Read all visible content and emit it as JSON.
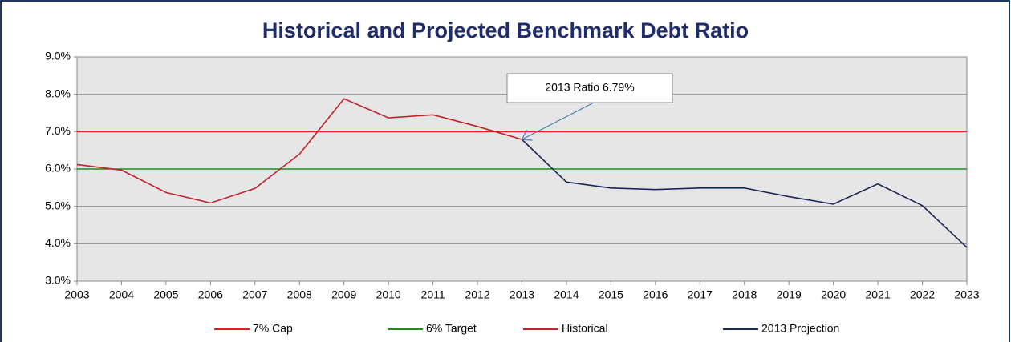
{
  "chart_data": {
    "type": "line",
    "title": "Historical and Projected Benchmark Debt Ratio",
    "x": [
      2003,
      2004,
      2005,
      2006,
      2007,
      2008,
      2009,
      2010,
      2011,
      2012,
      2013,
      2014,
      2015,
      2016,
      2017,
      2018,
      2019,
      2020,
      2021,
      2022,
      2023
    ],
    "xlim": [
      2003,
      2023
    ],
    "xticks": [
      2003,
      2004,
      2005,
      2006,
      2007,
      2008,
      2009,
      2010,
      2011,
      2012,
      2013,
      2014,
      2015,
      2016,
      2017,
      2018,
      2019,
      2020,
      2021,
      2022,
      2023
    ],
    "ylim": [
      3,
      9
    ],
    "yticks": [
      {
        "value": 3,
        "label": "3.0%"
      },
      {
        "value": 4,
        "label": "4.0%"
      },
      {
        "value": 5,
        "label": "5.0%"
      },
      {
        "value": 6,
        "label": "6.0%"
      },
      {
        "value": 7,
        "label": "7.0%"
      },
      {
        "value": 8,
        "label": "8.0%"
      },
      {
        "value": 9,
        "label": "9.0%"
      }
    ],
    "grid": true,
    "legend": "bottom",
    "series": [
      {
        "name": "7% Cap",
        "color": "#e0201c",
        "values": [
          7,
          7,
          7,
          7,
          7,
          7,
          7,
          7,
          7,
          7,
          7,
          7,
          7,
          7,
          7,
          7,
          7,
          7,
          7,
          7,
          7
        ]
      },
      {
        "name": "6% Target",
        "color": "#1e8c1e",
        "values": [
          6,
          6,
          6,
          6,
          6,
          6,
          6,
          6,
          6,
          6,
          6,
          6,
          6,
          6,
          6,
          6,
          6,
          6,
          6,
          6,
          6
        ]
      },
      {
        "name": "Historical",
        "color": "#c0242c",
        "values": [
          6.12,
          5.97,
          5.37,
          5.09,
          5.48,
          6.4,
          7.88,
          7.37,
          7.45,
          7.14,
          6.79,
          null,
          null,
          null,
          null,
          null,
          null,
          null,
          null,
          null,
          null
        ]
      },
      {
        "name": "2013 Projection",
        "color": "#1c2a5a",
        "values": [
          null,
          null,
          null,
          null,
          null,
          null,
          null,
          null,
          null,
          null,
          6.79,
          5.65,
          5.49,
          5.45,
          5.49,
          5.49,
          5.26,
          5.06,
          5.6,
          5.02,
          3.9
        ]
      }
    ],
    "annotation": {
      "text": "2013 Ratio 6.79%",
      "x": 2013,
      "series": 2
    }
  }
}
